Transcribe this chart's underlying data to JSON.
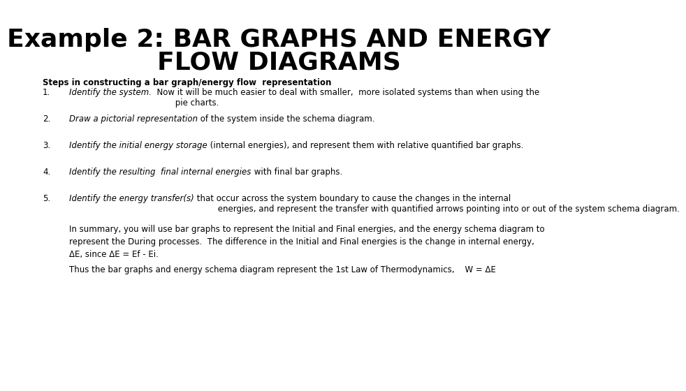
{
  "title_line1": "Example 2: BAR GRAPHS AND ENERGY",
  "title_line2": "FLOW DIAGRAMS",
  "background_color": "#ffffff",
  "title_fontsize": 26,
  "body_fontsize": 8.5,
  "subtitle": "Steps in constructing a bar graph/energy flow  representation",
  "items": [
    {
      "number": "1.",
      "italic_part": "Identify the system.",
      "normal_part": "  Now it will be much easier to deal with smaller,  more isolated systems than when using the\n         pie charts."
    },
    {
      "number": "2.",
      "italic_part": "Draw a pictorial representation",
      "normal_part": " of the system inside the schema diagram."
    },
    {
      "number": "3.",
      "italic_part": "Identify the initial energy storage",
      "normal_part": " (internal energies), and represent them with relative quantified bar graphs."
    },
    {
      "number": "4.",
      "italic_part": "Identify the resulting  final internal energies",
      "normal_part": " with final bar graphs."
    },
    {
      "number": "5.",
      "italic_part": "Identify the energy transfer(s)",
      "normal_part": " that occur across the system boundary to cause the changes in the internal\n         energies, and represent the transfer with quantified arrows pointing into or out of the system schema diagram."
    }
  ],
  "summary_para": "In summary, you will use bar graphs to represent the Initial and Final energies, and the energy schema diagram to\nrepresent the During processes.  The difference in the Initial and Final energies is the change in internal energy,\nΔE, since ΔE = Ef - Ei.",
  "conclusion_para": "Thus the bar graphs and energy schema diagram represent the 1st Law of Thermodynamics,    W = ΔE"
}
